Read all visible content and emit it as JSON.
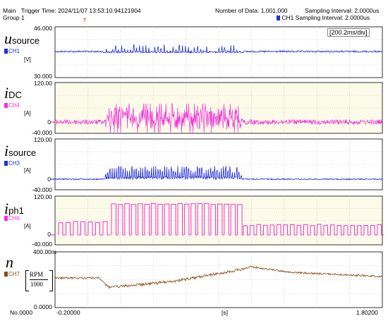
{
  "header": {
    "main": "Main",
    "group": "Group 1",
    "trigger_time": "Trigger Time: 2024/11/07 13:53:10.94121904",
    "number_of_data": "Number of Data: 1,001,000",
    "sampling_interval": "Sampling Interval:  2.0000us",
    "ch1_sampling_interval": "CH1 Sampling Interval:  2.0000us",
    "trigger_marker": "T"
  },
  "time_div": "[200.2ms/div]",
  "channels": [
    {
      "symbol": "u",
      "subscript": "source",
      "channel": "CH1",
      "unit": "[V]",
      "y_top": "46.000",
      "y_bottom": "30.000",
      "y_zero": "",
      "color": "#1f2fd6",
      "bg": "#ffffff"
    },
    {
      "symbol": "i",
      "subscript": "DC",
      "channel": "CH4",
      "unit": "[A]",
      "y_top": "120.00",
      "y_bottom": "-40.000",
      "y_zero": "0",
      "color": "#f033d8",
      "bg": "#fcfbe9"
    },
    {
      "symbol": "i",
      "subscript": "source",
      "channel": "CH3",
      "unit": "[A]",
      "y_top": "120.00",
      "y_bottom": "-40.000",
      "y_zero": "0",
      "color": "#1f2fd6",
      "bg": "#ffffff"
    },
    {
      "symbol": "i",
      "subscript": "ph1",
      "channel": "CH6",
      "unit": "[A]",
      "y_top": "120.00",
      "y_bottom": "-40.000",
      "y_zero": "0",
      "color": "#f033d8",
      "bg": "#fcfbe9"
    },
    {
      "symbol": "n",
      "subscript": "",
      "channel": "CH7",
      "unit_num": "RPM",
      "unit_den": "1000",
      "y_top": "400.00m",
      "y_bottom": "0.0000",
      "y_zero": "",
      "color": "#8b4a12",
      "bg": "#ffffff"
    }
  ],
  "x_axis": {
    "start_label": "No.0000",
    "left": "-0.20000",
    "unit": "[s]",
    "right": "1.80200"
  }
}
